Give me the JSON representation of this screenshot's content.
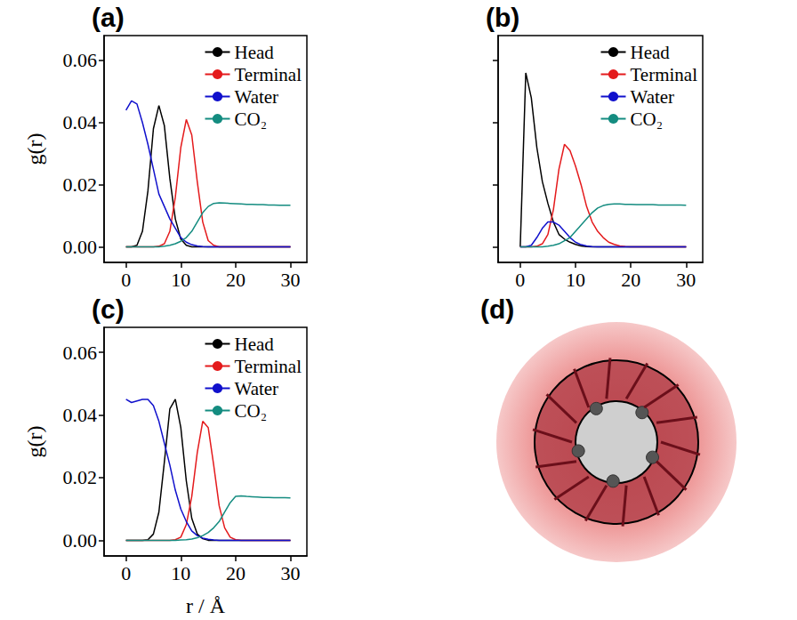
{
  "chart_data": [
    {
      "type": "line",
      "label": "(a)",
      "ylabel": "g(r)",
      "x": [
        0,
        1,
        2,
        3,
        4,
        5,
        6,
        7,
        8,
        9,
        10,
        11,
        12,
        13,
        14,
        15,
        16,
        17,
        18,
        19,
        20,
        21,
        22,
        23,
        24,
        25,
        26,
        27,
        28,
        29,
        30
      ],
      "series": [
        {
          "name": "Head",
          "color": "#000000",
          "values": [
            0,
            0,
            0.0005,
            0.005,
            0.018,
            0.038,
            0.0455,
            0.039,
            0.022,
            0.009,
            0.0025,
            0.0005,
            0,
            0,
            0,
            0,
            0,
            0,
            0,
            0,
            0,
            0,
            0,
            0,
            0,
            0,
            0,
            0,
            0,
            0,
            0
          ]
        },
        {
          "name": "Terminal",
          "color": "#e41a1c",
          "values": [
            0,
            0,
            0,
            0,
            0,
            0,
            0.0002,
            0.001,
            0.005,
            0.016,
            0.032,
            0.041,
            0.036,
            0.021,
            0.008,
            0.002,
            0.0005,
            0,
            0,
            0,
            0,
            0,
            0,
            0,
            0,
            0,
            0,
            0,
            0,
            0,
            0
          ]
        },
        {
          "name": "Water",
          "color": "#1010cc",
          "values": [
            0.044,
            0.047,
            0.046,
            0.04,
            0.033,
            0.025,
            0.017,
            0.013,
            0.009,
            0.006,
            0.003,
            0.0015,
            0.0007,
            0.0003,
            0.0001,
            0,
            0,
            0,
            0,
            0,
            0,
            0,
            0,
            0,
            0,
            0,
            0,
            0,
            0,
            0,
            0
          ]
        },
        {
          "name": "CO₂",
          "color": "#148c80",
          "values": [
            0,
            0,
            0,
            0,
            0,
            0,
            0,
            0.0002,
            0.0005,
            0.001,
            0.0018,
            0.003,
            0.005,
            0.008,
            0.011,
            0.013,
            0.014,
            0.0142,
            0.0141,
            0.014,
            0.0139,
            0.0138,
            0.0137,
            0.0137,
            0.0136,
            0.0136,
            0.0135,
            0.0135,
            0.0134,
            0.0134,
            0.0134
          ]
        }
      ],
      "xlim": [
        -4,
        33
      ],
      "xticks": [
        0,
        10,
        20,
        30
      ],
      "ylim": [
        -0.005,
        0.068
      ],
      "yticks": [
        {
          "value": 0,
          "label": "0.00"
        },
        {
          "value": 0.02,
          "label": "0.02"
        },
        {
          "value": 0.04,
          "label": "0.04"
        },
        {
          "value": 0.06,
          "label": "0.06"
        }
      ],
      "legend": "upper right"
    },
    {
      "type": "line",
      "label": "(b)",
      "x": [
        0,
        1,
        2,
        3,
        4,
        5,
        6,
        7,
        8,
        9,
        10,
        11,
        12,
        13,
        14,
        15,
        16,
        17,
        18,
        19,
        20,
        21,
        22,
        23,
        24,
        25,
        26,
        27,
        28,
        29,
        30
      ],
      "series": [
        {
          "name": "Head",
          "color": "#000000",
          "values": [
            0,
            0.056,
            0.048,
            0.032,
            0.021,
            0.014,
            0.008,
            0.004,
            0.0025,
            0.0015,
            0.0008,
            0.0003,
            0.0001,
            0,
            0,
            0,
            0,
            0,
            0,
            0,
            0,
            0,
            0,
            0,
            0,
            0,
            0,
            0,
            0,
            0,
            0
          ]
        },
        {
          "name": "Terminal",
          "color": "#e41a1c",
          "values": [
            0,
            0,
            0,
            0.0002,
            0.001,
            0.004,
            0.012,
            0.025,
            0.033,
            0.031,
            0.026,
            0.02,
            0.013,
            0.008,
            0.005,
            0.003,
            0.0015,
            0.0008,
            0.0003,
            0.0001,
            0,
            0,
            0,
            0,
            0,
            0,
            0,
            0,
            0,
            0,
            0
          ]
        },
        {
          "name": "Water",
          "color": "#1010cc",
          "values": [
            0,
            0,
            0.0005,
            0.003,
            0.006,
            0.008,
            0.008,
            0.007,
            0.005,
            0.003,
            0.0015,
            0.0007,
            0.0003,
            0.0001,
            0,
            0,
            0,
            0,
            0,
            0,
            0,
            0,
            0,
            0,
            0,
            0,
            0,
            0,
            0,
            0,
            0
          ]
        },
        {
          "name": "CO₂",
          "color": "#148c80",
          "values": [
            0,
            0,
            0,
            0,
            0,
            0.0002,
            0.0005,
            0.001,
            0.002,
            0.003,
            0.005,
            0.007,
            0.009,
            0.011,
            0.0125,
            0.0133,
            0.0137,
            0.0138,
            0.0138,
            0.0137,
            0.0137,
            0.0136,
            0.0136,
            0.0136,
            0.0136,
            0.0135,
            0.0135,
            0.0135,
            0.0135,
            0.0135,
            0.0134
          ]
        }
      ],
      "xlim": [
        -4,
        33
      ],
      "xticks": [
        0,
        10,
        20,
        30
      ],
      "ylim": [
        -0.005,
        0.068
      ],
      "yticks": [
        {
          "value": 0,
          "label": "0.00"
        },
        {
          "value": 0.02,
          "label": "0.02"
        },
        {
          "value": 0.04,
          "label": "0.04"
        },
        {
          "value": 0.06,
          "label": "0.06"
        }
      ],
      "tick_labels": "x",
      "legend": "upper right"
    },
    {
      "type": "line",
      "label": "(c)",
      "ylabel": "g(r)",
      "xlabel": "r / Å",
      "x": [
        0,
        1,
        2,
        3,
        4,
        5,
        6,
        7,
        8,
        9,
        10,
        11,
        12,
        13,
        14,
        15,
        16,
        17,
        18,
        19,
        20,
        21,
        22,
        23,
        24,
        25,
        26,
        27,
        28,
        29,
        30
      ],
      "series": [
        {
          "name": "Head",
          "color": "#000000",
          "values": [
            0,
            0,
            0,
            0,
            0.0002,
            0.002,
            0.009,
            0.025,
            0.042,
            0.045,
            0.036,
            0.019,
            0.007,
            0.002,
            0.0005,
            0,
            0,
            0,
            0,
            0,
            0,
            0,
            0,
            0,
            0,
            0,
            0,
            0,
            0,
            0,
            0
          ]
        },
        {
          "name": "Terminal",
          "color": "#e41a1c",
          "values": [
            0,
            0,
            0,
            0,
            0,
            0,
            0,
            0,
            0,
            0.0002,
            0.001,
            0.005,
            0.014,
            0.028,
            0.038,
            0.036,
            0.024,
            0.011,
            0.004,
            0.001,
            0.0002,
            0,
            0,
            0,
            0,
            0,
            0,
            0,
            0,
            0,
            0
          ]
        },
        {
          "name": "Water",
          "color": "#1010cc",
          "values": [
            0.045,
            0.044,
            0.0445,
            0.045,
            0.045,
            0.043,
            0.038,
            0.031,
            0.024,
            0.016,
            0.01,
            0.006,
            0.003,
            0.0015,
            0.0007,
            0.0003,
            0.0001,
            0,
            0,
            0,
            0,
            0,
            0,
            0,
            0,
            0,
            0,
            0,
            0,
            0,
            0
          ]
        },
        {
          "name": "CO₂",
          "color": "#148c80",
          "values": [
            0,
            0,
            0,
            0,
            0,
            0,
            0,
            0,
            0,
            0,
            0.0001,
            0.0002,
            0.0004,
            0.0008,
            0.0015,
            0.0025,
            0.004,
            0.006,
            0.009,
            0.012,
            0.014,
            0.0142,
            0.014,
            0.0139,
            0.0138,
            0.0137,
            0.0137,
            0.0136,
            0.0136,
            0.0136,
            0.0135
          ]
        }
      ],
      "xlim": [
        -4,
        33
      ],
      "xticks": [
        0,
        10,
        20,
        30
      ],
      "ylim": [
        -0.005,
        0.068
      ],
      "yticks": [
        {
          "value": 0,
          "label": "0.00"
        },
        {
          "value": 0.02,
          "label": "0.02"
        },
        {
          "value": 0.04,
          "label": "0.04"
        },
        {
          "value": 0.06,
          "label": "0.06"
        }
      ],
      "legend": "upper right"
    }
  ],
  "panel_d": {
    "label": "(d)"
  }
}
